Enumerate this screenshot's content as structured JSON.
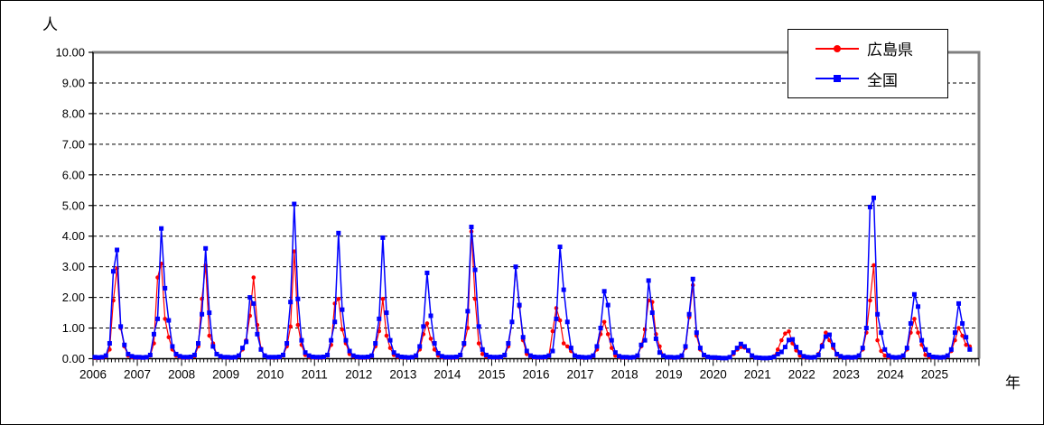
{
  "chart_data": {
    "type": "line",
    "title": "",
    "ylabel": "人",
    "xlabel": "年",
    "ylim": [
      0,
      10
    ],
    "yticks": [
      "0.00",
      "1.00",
      "2.00",
      "3.00",
      "4.00",
      "5.00",
      "6.00",
      "7.00",
      "8.00",
      "9.00",
      "10.00"
    ],
    "gridlines": "horizontal-dashed",
    "legend_position": "top-right",
    "years": [
      2006,
      2007,
      2008,
      2009,
      2010,
      2011,
      2012,
      2013,
      2014,
      2015,
      2016,
      2017,
      2018,
      2019,
      2020,
      2021,
      2022,
      2023,
      2024,
      2025
    ],
    "months_per_year": 12,
    "plot_border_color": "#808080",
    "series": [
      {
        "name": "広島県",
        "color": "#FF0000",
        "marker": "circle",
        "monthly_by_year": {
          "2006": [
            0.02,
            0.02,
            0.03,
            0.07,
            0.3,
            1.9,
            2.95,
            1.0,
            0.4,
            0.1,
            0.05,
            0.03
          ],
          "2007": [
            0.03,
            0.03,
            0.04,
            0.1,
            0.5,
            2.65,
            3.1,
            1.3,
            0.7,
            0.3,
            0.1,
            0.05
          ],
          "2008": [
            0.03,
            0.03,
            0.04,
            0.08,
            0.4,
            1.95,
            3.05,
            0.75,
            0.5,
            0.15,
            0.06,
            0.04
          ],
          "2009": [
            0.03,
            0.03,
            0.04,
            0.08,
            0.3,
            0.6,
            1.4,
            2.65,
            1.1,
            0.33,
            0.1,
            0.04
          ],
          "2010": [
            0.03,
            0.03,
            0.04,
            0.1,
            0.4,
            1.05,
            3.5,
            1.1,
            0.45,
            0.12,
            0.06,
            0.04
          ],
          "2011": [
            0.03,
            0.03,
            0.04,
            0.1,
            0.45,
            1.8,
            1.95,
            0.95,
            0.5,
            0.15,
            0.07,
            0.04
          ],
          "2012": [
            0.03,
            0.03,
            0.04,
            0.08,
            0.4,
            0.9,
            1.95,
            0.75,
            0.35,
            0.12,
            0.06,
            0.04
          ],
          "2013": [
            0.03,
            0.03,
            0.04,
            0.08,
            0.3,
            0.8,
            1.15,
            0.65,
            0.3,
            0.1,
            0.05,
            0.03
          ],
          "2014": [
            0.03,
            0.03,
            0.04,
            0.1,
            0.45,
            1.0,
            4.15,
            1.95,
            0.5,
            0.15,
            0.07,
            0.04
          ],
          "2015": [
            0.04,
            0.03,
            0.04,
            0.1,
            0.4,
            1.2,
            3.0,
            1.7,
            0.6,
            0.15,
            0.07,
            0.04
          ],
          "2016": [
            0.03,
            0.03,
            0.04,
            0.08,
            0.9,
            1.65,
            1.25,
            0.5,
            0.4,
            0.25,
            0.1,
            0.05
          ],
          "2017": [
            0.03,
            0.03,
            0.04,
            0.08,
            0.3,
            0.8,
            1.2,
            0.8,
            0.35,
            0.1,
            0.05,
            0.03
          ],
          "2018": [
            0.03,
            0.03,
            0.04,
            0.08,
            0.4,
            0.95,
            1.9,
            1.85,
            0.8,
            0.4,
            0.1,
            0.05
          ],
          "2019": [
            0.03,
            0.03,
            0.04,
            0.08,
            0.35,
            1.35,
            2.4,
            0.75,
            0.3,
            0.1,
            0.05,
            0.03
          ],
          "2020": [
            0.02,
            0.02,
            0.02,
            0.02,
            0.05,
            0.15,
            0.3,
            0.38,
            0.36,
            0.25,
            0.08,
            0.03
          ],
          "2021": [
            0.02,
            0.02,
            0.02,
            0.03,
            0.08,
            0.3,
            0.6,
            0.82,
            0.89,
            0.5,
            0.27,
            0.1
          ],
          "2022": [
            0.05,
            0.03,
            0.03,
            0.05,
            0.15,
            0.45,
            0.85,
            0.6,
            0.35,
            0.12,
            0.06,
            0.03
          ],
          "2023": [
            0.03,
            0.03,
            0.04,
            0.1,
            0.3,
            0.85,
            1.9,
            3.05,
            0.6,
            0.25,
            0.1,
            0.05
          ],
          "2024": [
            0.04,
            0.03,
            0.04,
            0.08,
            0.3,
            0.85,
            1.3,
            0.85,
            0.45,
            0.12,
            0.06,
            0.04
          ],
          "2025": [
            0.04,
            0.03,
            0.04,
            0.08,
            0.25,
            0.6,
            1.0,
            0.75,
            0.45,
            0.4,
            null,
            null
          ]
        }
      },
      {
        "name": "全国",
        "color": "#0000FF",
        "marker": "square",
        "monthly_by_year": {
          "2006": [
            0.05,
            0.04,
            0.05,
            0.1,
            0.5,
            2.85,
            3.55,
            1.05,
            0.45,
            0.15,
            0.08,
            0.05
          ],
          "2007": [
            0.05,
            0.04,
            0.05,
            0.12,
            0.8,
            1.3,
            4.25,
            2.3,
            1.25,
            0.4,
            0.15,
            0.08
          ],
          "2008": [
            0.05,
            0.05,
            0.06,
            0.12,
            0.5,
            1.45,
            3.6,
            1.5,
            0.4,
            0.15,
            0.08,
            0.05
          ],
          "2009": [
            0.05,
            0.04,
            0.05,
            0.1,
            0.35,
            0.55,
            2.0,
            1.8,
            0.8,
            0.3,
            0.1,
            0.05
          ],
          "2010": [
            0.05,
            0.05,
            0.06,
            0.12,
            0.5,
            1.85,
            5.05,
            1.95,
            0.6,
            0.2,
            0.1,
            0.06
          ],
          "2011": [
            0.05,
            0.05,
            0.06,
            0.12,
            0.6,
            1.2,
            4.1,
            1.6,
            0.6,
            0.25,
            0.1,
            0.06
          ],
          "2012": [
            0.05,
            0.05,
            0.06,
            0.1,
            0.5,
            1.3,
            3.95,
            1.5,
            0.6,
            0.2,
            0.1,
            0.06
          ],
          "2013": [
            0.05,
            0.04,
            0.05,
            0.1,
            0.4,
            1.05,
            2.8,
            1.4,
            0.5,
            0.18,
            0.08,
            0.05
          ],
          "2014": [
            0.05,
            0.05,
            0.06,
            0.12,
            0.5,
            1.55,
            4.3,
            2.9,
            1.05,
            0.3,
            0.12,
            0.06
          ],
          "2015": [
            0.05,
            0.05,
            0.06,
            0.12,
            0.5,
            1.2,
            3.0,
            1.75,
            0.7,
            0.25,
            0.1,
            0.06
          ],
          "2016": [
            0.05,
            0.05,
            0.06,
            0.1,
            0.25,
            1.3,
            3.65,
            2.25,
            1.2,
            0.35,
            0.1,
            0.06
          ],
          "2017": [
            0.05,
            0.04,
            0.05,
            0.1,
            0.4,
            1.0,
            2.2,
            1.75,
            0.6,
            0.2,
            0.08,
            0.05
          ],
          "2018": [
            0.05,
            0.04,
            0.05,
            0.1,
            0.45,
            0.6,
            2.55,
            1.5,
            0.65,
            0.2,
            0.1,
            0.05
          ],
          "2019": [
            0.05,
            0.04,
            0.05,
            0.1,
            0.4,
            1.45,
            2.6,
            0.85,
            0.35,
            0.12,
            0.06,
            0.04
          ],
          "2020": [
            0.04,
            0.03,
            0.02,
            0.02,
            0.05,
            0.2,
            0.35,
            0.48,
            0.4,
            0.27,
            0.1,
            0.04
          ],
          "2021": [
            0.03,
            0.02,
            0.02,
            0.03,
            0.06,
            0.15,
            0.22,
            0.38,
            0.61,
            0.63,
            0.38,
            0.2
          ],
          "2022": [
            0.08,
            0.05,
            0.04,
            0.05,
            0.12,
            0.4,
            0.72,
            0.78,
            0.45,
            0.15,
            0.08,
            0.04
          ],
          "2023": [
            0.05,
            0.04,
            0.05,
            0.1,
            0.35,
            1.0,
            4.95,
            5.25,
            1.45,
            0.85,
            0.3,
            0.1
          ],
          "2024": [
            0.05,
            0.04,
            0.05,
            0.1,
            0.35,
            1.15,
            2.1,
            1.7,
            0.6,
            0.3,
            0.12,
            0.06
          ],
          "2025": [
            0.05,
            0.04,
            0.05,
            0.1,
            0.3,
            0.85,
            1.8,
            1.15,
            0.7,
            0.3,
            null,
            null
          ]
        }
      }
    ]
  }
}
